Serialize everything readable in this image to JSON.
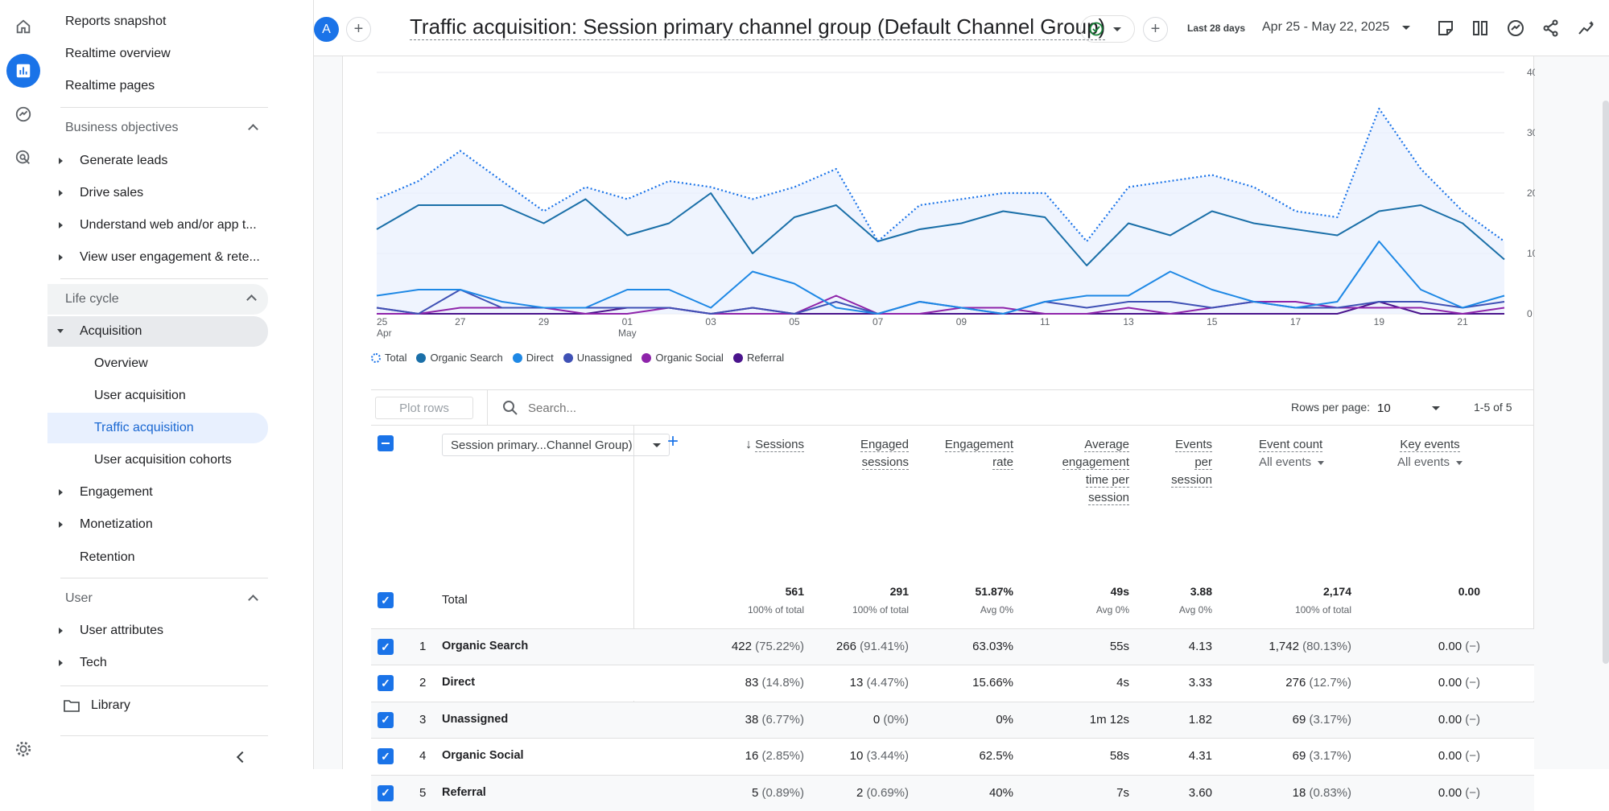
{
  "nav": {
    "reports_snapshot": "Reports snapshot",
    "realtime_overview": "Realtime overview",
    "realtime_pages": "Realtime pages",
    "business_objectives": "Business objectives",
    "generate_leads": "Generate leads",
    "drive_sales": "Drive sales",
    "understand": "Understand web and/or app t...",
    "view_engagement": "View user engagement & rete...",
    "life_cycle": "Life cycle",
    "acquisition": "Acquisition",
    "overview": "Overview",
    "user_acquisition": "User acquisition",
    "traffic_acquisition": "Traffic acquisition",
    "user_acquisition_cohorts": "User acquisition cohorts",
    "engagement": "Engagement",
    "monetization": "Monetization",
    "retention": "Retention",
    "user": "User",
    "user_attributes": "User attributes",
    "tech": "Tech",
    "library": "Library"
  },
  "header": {
    "avatar": "A",
    "title": "Traffic acquisition: Session primary channel group (Default Channel Group)",
    "date_label": "Last 28 days",
    "date_range": "Apr 25 - May 22, 2025"
  },
  "chart_data": {
    "type": "line",
    "x": [
      "25",
      "26",
      "27",
      "28",
      "29",
      "30",
      "01",
      "02",
      "03",
      "04",
      "05",
      "06",
      "07",
      "08",
      "09",
      "10",
      "11",
      "12",
      "13",
      "14",
      "15",
      "16",
      "17",
      "18",
      "19",
      "20",
      "21",
      "22"
    ],
    "x_tick_labels": [
      "25",
      "27",
      "29",
      "01",
      "03",
      "05",
      "07",
      "09",
      "11",
      "13",
      "15",
      "17",
      "19",
      "21"
    ],
    "x_sub_labels": [
      "Apr",
      "May"
    ],
    "y_ticks": [
      "40",
      "30",
      "20",
      "10",
      "0"
    ],
    "ylim": [
      0,
      40
    ],
    "series": [
      {
        "name": "Total",
        "color": "#1a73e8",
        "dashed": true,
        "values": [
          19,
          22,
          27,
          22,
          17,
          21,
          19,
          22,
          21,
          19,
          21,
          24,
          12,
          18,
          19,
          20,
          20,
          12,
          21,
          22,
          23,
          21,
          17,
          16,
          34,
          24,
          17,
          12
        ]
      },
      {
        "name": "Organic Search",
        "color": "#1a6fa8",
        "values": [
          14,
          18,
          18,
          18,
          15,
          19,
          13,
          15,
          20,
          10,
          16,
          18,
          12,
          14,
          15,
          17,
          16,
          8,
          15,
          13,
          17,
          15,
          14,
          13,
          17,
          18,
          15,
          9
        ]
      },
      {
        "name": "Direct",
        "color": "#1e88e5",
        "values": [
          3,
          4,
          4,
          2,
          1,
          1,
          4,
          4,
          1,
          7,
          5,
          1,
          0,
          2,
          1,
          0,
          2,
          3,
          3,
          7,
          4,
          2,
          1,
          2,
          12,
          4,
          1,
          3
        ]
      },
      {
        "name": "Unassigned",
        "color": "#3f51b5",
        "values": [
          1,
          0,
          4,
          1,
          1,
          1,
          1,
          1,
          0,
          1,
          0,
          2,
          0,
          2,
          1,
          0,
          2,
          1,
          2,
          2,
          1,
          2,
          1,
          1,
          2,
          2,
          1,
          2
        ]
      },
      {
        "name": "Organic Social",
        "color": "#8e24aa",
        "values": [
          0,
          0,
          1,
          1,
          1,
          0,
          0,
          1,
          0,
          0,
          0,
          3,
          0,
          0,
          1,
          1,
          0,
          0,
          1,
          0,
          1,
          2,
          2,
          1,
          1,
          1,
          0,
          1
        ]
      },
      {
        "name": "Referral",
        "color": "#4a148c",
        "values": [
          1,
          0,
          0,
          0,
          0,
          0,
          1,
          1,
          0,
          1,
          0,
          0,
          0,
          0,
          0,
          0,
          0,
          0,
          0,
          0,
          0,
          0,
          0,
          0,
          2,
          0,
          0,
          0
        ]
      }
    ]
  },
  "toolbar": {
    "plot_rows": "Plot rows",
    "search_placeholder": "Search...",
    "rows_per_page_label": "Rows per page:",
    "rows_per_page": "10",
    "pagination": "1-5 of 5"
  },
  "table": {
    "dimension": "Session primary...Channel Group)",
    "columns": {
      "sessions": "Sessions",
      "engaged1": "Engaged",
      "engaged2": "sessions",
      "engrate1": "Engagement",
      "engrate2": "rate",
      "avg1": "Average",
      "avg2": "engagement",
      "avg3": "time per",
      "avg4": "session",
      "eps1": "Events",
      "eps2": "per",
      "eps3": "session",
      "eventcount": "Event count",
      "keyevents": "Key events",
      "all_events": "All events"
    },
    "total": {
      "label": "Total",
      "sessions": "561",
      "sessions_sub": "100% of total",
      "engaged": "291",
      "engaged_sub": "100% of total",
      "rate": "51.87%",
      "rate_sub": "Avg 0%",
      "avg": "49s",
      "avg_sub": "Avg 0%",
      "eps": "3.88",
      "eps_sub": "Avg 0%",
      "events": "2,174",
      "events_sub": "100% of total",
      "key": "0.00"
    },
    "rows": [
      {
        "n": "1",
        "name": "Organic Search",
        "sessions": "422",
        "sp": "(75.22%)",
        "engaged": "266",
        "ep": "(91.41%)",
        "rate": "63.03%",
        "avg": "55s",
        "eps": "4.13",
        "events": "1,742",
        "evp": "(80.13%)",
        "key": "0.00",
        "kp": "(−)"
      },
      {
        "n": "2",
        "name": "Direct",
        "sessions": "83",
        "sp": "(14.8%)",
        "engaged": "13",
        "ep": "(4.47%)",
        "rate": "15.66%",
        "avg": "4s",
        "eps": "3.33",
        "events": "276",
        "evp": "(12.7%)",
        "key": "0.00",
        "kp": "(−)"
      },
      {
        "n": "3",
        "name": "Unassigned",
        "sessions": "38",
        "sp": "(6.77%)",
        "engaged": "0",
        "ep": "(0%)",
        "rate": "0%",
        "avg": "1m 12s",
        "eps": "1.82",
        "events": "69",
        "evp": "(3.17%)",
        "key": "0.00",
        "kp": "(−)"
      },
      {
        "n": "4",
        "name": "Organic Social",
        "sessions": "16",
        "sp": "(2.85%)",
        "engaged": "10",
        "ep": "(3.44%)",
        "rate": "62.5%",
        "avg": "58s",
        "eps": "4.31",
        "events": "69",
        "evp": "(3.17%)",
        "key": "0.00",
        "kp": "(−)"
      },
      {
        "n": "5",
        "name": "Referral",
        "sessions": "5",
        "sp": "(0.89%)",
        "engaged": "2",
        "ep": "(0.69%)",
        "rate": "40%",
        "avg": "7s",
        "eps": "3.60",
        "events": "18",
        "evp": "(0.83%)",
        "key": "0.00",
        "kp": "(−)"
      }
    ]
  }
}
